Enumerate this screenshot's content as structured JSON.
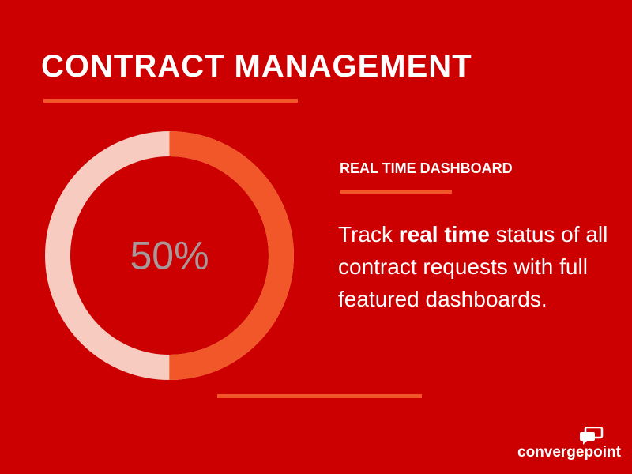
{
  "title": "CONTRACT MANAGEMENT",
  "gauge": {
    "label": "50%",
    "value": 0.5,
    "colors": {
      "filled": "#f2572a",
      "remaining": "#f7cbc0",
      "text": "#a8989a"
    }
  },
  "feature": {
    "heading": "REAL TIME DASHBOARD",
    "text_before": "Track ",
    "text_bold": "real time",
    "text_after": " status of all contract requests with  full featured dashboards."
  },
  "brand": {
    "logo_text": "convergepoint",
    "icon": "speech-bubbles-icon"
  },
  "colors": {
    "background": "#cc0000",
    "accent": "#f2572a",
    "text": "#ffffff"
  }
}
